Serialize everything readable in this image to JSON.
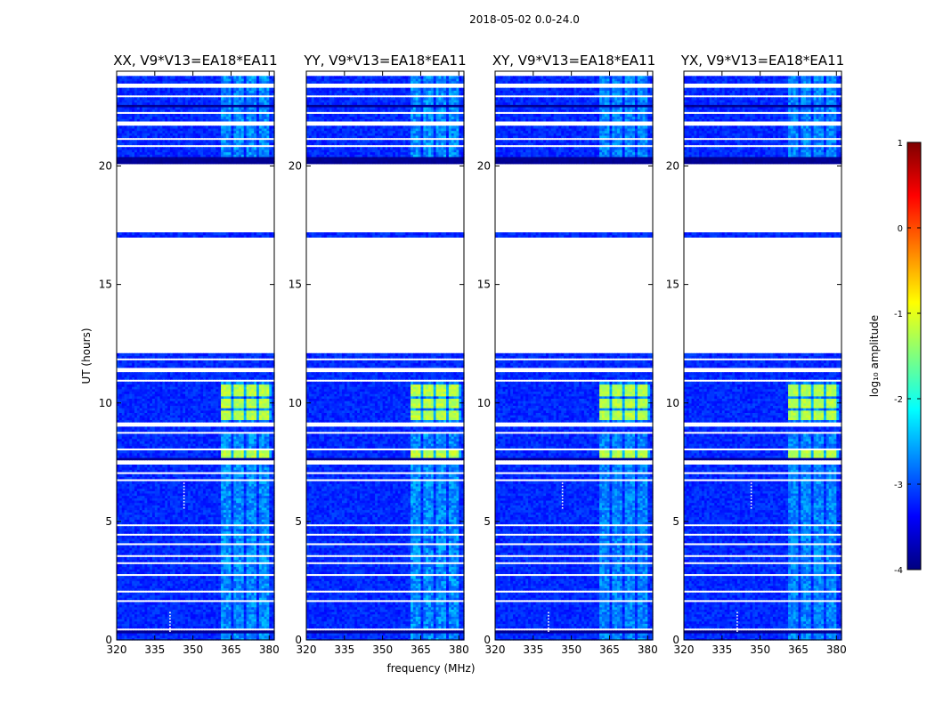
{
  "figure": {
    "title": "2018-05-02 0.0-24.0",
    "xlabel": "frequency (MHz)",
    "ylabel": "UT (hours)",
    "colorbar_label": "log₁₀ amplitude"
  },
  "colors": {
    "background": "#ffffff",
    "gap": "#ffffff",
    "colormap": [
      "#00007f",
      "#0000ff",
      "#007fff",
      "#00ffff",
      "#7fff7f",
      "#ffff00",
      "#ff7f00",
      "#ff0000",
      "#7f0000"
    ]
  },
  "chart_data": {
    "type": "heatmap",
    "colormap": "jet",
    "color_range": [
      -4,
      1
    ],
    "colorbar_ticks": [
      1,
      0,
      -1,
      -2,
      -3,
      -4
    ],
    "xlim": [
      320,
      382
    ],
    "ylim": [
      0,
      24
    ],
    "xticks": [
      320,
      335,
      350,
      365,
      380
    ],
    "yticks": [
      0,
      5,
      10,
      15,
      20
    ],
    "panels": [
      {
        "title": "XX, V9*V13=EA18*EA11",
        "bright_scale": 1.0,
        "rfi_dots": true
      },
      {
        "title": "YY, V9*V13=EA18*EA11",
        "bright_scale": 1.05,
        "rfi_dots": false
      },
      {
        "title": "XY, V9*V13=EA18*EA11",
        "bright_scale": 0.9,
        "rfi_dots": true
      },
      {
        "title": "YX, V9*V13=EA18*EA11",
        "bright_scale": 0.9,
        "rfi_dots": true
      }
    ],
    "flagged_ut_ranges": [
      [
        0.45,
        0.5
      ],
      [
        1.6,
        1.7
      ],
      [
        2.0,
        2.1
      ],
      [
        2.7,
        2.8
      ],
      [
        3.25,
        3.35
      ],
      [
        3.5,
        3.6
      ],
      [
        4.05,
        4.15
      ],
      [
        4.4,
        4.5
      ],
      [
        4.8,
        4.9
      ],
      [
        6.7,
        6.8
      ],
      [
        7.0,
        7.1
      ],
      [
        7.45,
        7.6
      ],
      [
        8.0,
        8.1
      ],
      [
        8.75,
        8.85
      ],
      [
        9.05,
        9.25
      ],
      [
        10.9,
        11.0
      ],
      [
        11.35,
        11.55
      ],
      [
        11.85,
        11.95
      ],
      [
        12.15,
        17.0
      ],
      [
        17.2,
        20.1
      ],
      [
        20.5,
        20.55
      ],
      [
        20.85,
        20.95
      ],
      [
        21.15,
        21.2
      ],
      [
        21.7,
        21.9
      ],
      [
        22.2,
        22.35
      ],
      [
        22.9,
        23.0
      ],
      [
        23.35,
        23.55
      ],
      [
        23.85,
        24.0
      ]
    ],
    "dark_ut_ranges": [
      [
        0.28,
        0.45
      ],
      [
        7.6,
        7.75
      ],
      [
        20.1,
        20.45
      ],
      [
        22.5,
        22.6
      ]
    ],
    "rfi_frequency_bands_mhz": [
      [
        361,
        365
      ],
      [
        366.5,
        370
      ],
      [
        371.5,
        375
      ],
      [
        376.5,
        380
      ]
    ],
    "strong_rfi_ut_ranges": [
      [
        7.75,
        8.0
      ],
      [
        9.3,
        9.7
      ],
      [
        9.85,
        10.2
      ],
      [
        10.3,
        10.85
      ]
    ],
    "moderate_rfi_ut_ranges": [
      [
        0.0,
        7.45
      ],
      [
        8.1,
        8.75
      ],
      [
        9.25,
        11.0
      ],
      [
        20.1,
        24.0
      ]
    ]
  }
}
